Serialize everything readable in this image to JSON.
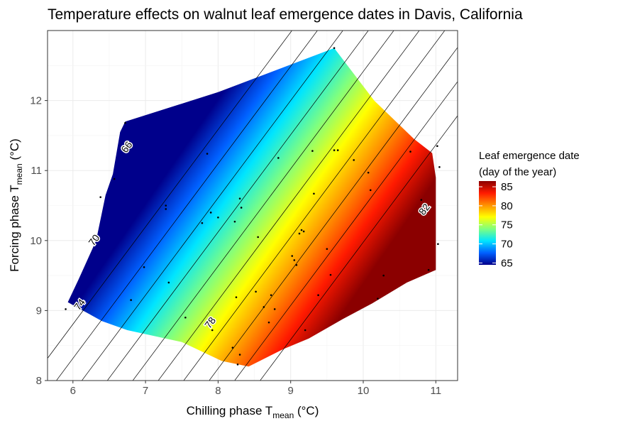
{
  "chart_data": {
    "type": "heatmap",
    "title": "Temperature effects on walnut leaf emergence dates in Davis, California",
    "xlabel": {
      "main": "Chilling phase T",
      "sub": "mean",
      "unit": " (°C)"
    },
    "ylabel": {
      "main": "Forcing phase T",
      "sub": "mean",
      "unit": " (°C)"
    },
    "xlim": [
      5.65,
      11.3
    ],
    "ylim": [
      8.0,
      13.0
    ],
    "x_ticks": [
      "6",
      "7",
      "8",
      "9",
      "10",
      "11"
    ],
    "y_ticks": [
      "8",
      "9",
      "10",
      "11",
      "12"
    ],
    "grid": true,
    "legend": {
      "title_line1": "Leaf emergence date",
      "title_line2": "(day of the year)",
      "placement": "right",
      "ticks": [
        "65",
        "70",
        "75",
        "80",
        "85"
      ],
      "range": [
        64.5,
        86.5
      ]
    },
    "colorscale": [
      "#00008b",
      "#0060ff",
      "#00e5ff",
      "#7fff7f",
      "#ffff00",
      "#ff9000",
      "#ff1a00",
      "#8b0000"
    ],
    "surface_extent": [
      [
        5.93,
        9.12
      ],
      [
        6.08,
        9.45
      ],
      [
        6.32,
        10.0
      ],
      [
        6.45,
        10.65
      ],
      [
        6.55,
        10.95
      ],
      [
        6.65,
        11.55
      ],
      [
        6.72,
        11.7
      ],
      [
        8.0,
        12.12
      ],
      [
        9.6,
        12.75
      ],
      [
        10.15,
        12.0
      ],
      [
        10.7,
        11.45
      ],
      [
        10.95,
        11.25
      ],
      [
        11.0,
        10.9
      ],
      [
        11.0,
        9.58
      ],
      [
        10.6,
        9.4
      ],
      [
        10.12,
        9.1
      ],
      [
        9.72,
        8.88
      ],
      [
        9.25,
        8.6
      ],
      [
        8.9,
        8.45
      ],
      [
        8.42,
        8.2
      ],
      [
        8.05,
        8.28
      ],
      [
        7.5,
        8.55
      ],
      [
        6.75,
        8.72
      ],
      [
        6.4,
        8.85
      ],
      [
        6.05,
        9.05
      ]
    ],
    "temperature_model": {
      "intercept": 65.2,
      "chill_coef": 5.7,
      "force_coef": -4.1,
      "ref_chill": 6.0,
      "ref_force": 9.0
    },
    "contour_levels": [
      66,
      68,
      70,
      72,
      74,
      76,
      78,
      80,
      82,
      84
    ],
    "contour_labels": [
      {
        "text": "66",
        "x": 6.75,
        "y": 11.33
      },
      {
        "text": "70",
        "x": 6.3,
        "y": 10.0
      },
      {
        "text": "74",
        "x": 6.1,
        "y": 9.08
      },
      {
        "text": "78",
        "x": 7.9,
        "y": 8.82
      },
      {
        "text": "82",
        "x": 10.85,
        "y": 10.44
      }
    ],
    "observations": [
      [
        5.9,
        9.02
      ],
      [
        6.38,
        10.62
      ],
      [
        6.57,
        10.88
      ],
      [
        6.72,
        11.68
      ],
      [
        6.8,
        9.15
      ],
      [
        6.98,
        9.62
      ],
      [
        7.28,
        10.5
      ],
      [
        7.28,
        10.45
      ],
      [
        7.32,
        9.4
      ],
      [
        7.55,
        8.9
      ],
      [
        7.78,
        10.25
      ],
      [
        7.85,
        11.24
      ],
      [
        7.9,
        10.4
      ],
      [
        7.92,
        8.72
      ],
      [
        8.0,
        10.33
      ],
      [
        8.2,
        8.47
      ],
      [
        8.23,
        10.27
      ],
      [
        8.25,
        9.19
      ],
      [
        8.3,
        10.6
      ],
      [
        8.32,
        10.47
      ],
      [
        8.3,
        8.37
      ],
      [
        8.27,
        8.23
      ],
      [
        8.52,
        9.27
      ],
      [
        8.55,
        10.05
      ],
      [
        8.63,
        9.05
      ],
      [
        8.73,
        9.22
      ],
      [
        8.78,
        9.02
      ],
      [
        8.83,
        11.18
      ],
      [
        8.7,
        8.83
      ],
      [
        9.02,
        9.78
      ],
      [
        9.05,
        9.72
      ],
      [
        9.08,
        9.65
      ],
      [
        9.12,
        10.1
      ],
      [
        9.15,
        10.15
      ],
      [
        9.18,
        10.13
      ],
      [
        9.3,
        11.28
      ],
      [
        9.32,
        10.67
      ],
      [
        9.38,
        9.22
      ],
      [
        9.5,
        9.88
      ],
      [
        9.55,
        9.51
      ],
      [
        9.6,
        11.29
      ],
      [
        9.65,
        11.29
      ],
      [
        9.6,
        12.75
      ],
      [
        9.2,
        8.72
      ],
      [
        9.87,
        11.15
      ],
      [
        10.07,
        10.97
      ],
      [
        10.1,
        10.72
      ],
      [
        10.2,
        9.17
      ],
      [
        10.28,
        9.5
      ],
      [
        10.65,
        11.27
      ],
      [
        10.8,
        10.58
      ],
      [
        10.9,
        9.58
      ],
      [
        11.02,
        11.35
      ],
      [
        11.05,
        11.05
      ],
      [
        11.03,
        9.95
      ]
    ]
  }
}
